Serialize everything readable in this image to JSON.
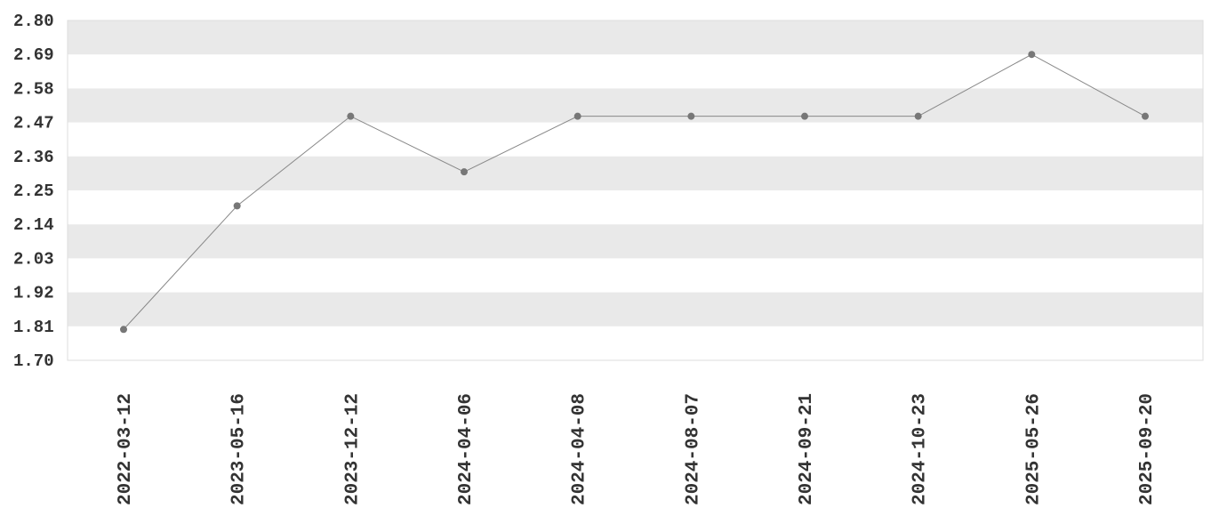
{
  "chart_data": {
    "type": "line",
    "title": "",
    "xlabel": "",
    "ylabel": "",
    "categories": [
      "2022-03-12",
      "2023-05-16",
      "2023-12-12",
      "2024-04-06",
      "2024-04-08",
      "2024-08-07",
      "2024-09-21",
      "2024-10-23",
      "2025-05-26",
      "2025-09-20"
    ],
    "series": [
      {
        "values": [
          1.8,
          2.2,
          2.49,
          2.31,
          2.49,
          2.49,
          2.49,
          2.49,
          2.69,
          2.49
        ]
      }
    ],
    "ylim": [
      1.7,
      2.8
    ],
    "yticks": [
      "1.70",
      "1.81",
      "1.92",
      "2.03",
      "2.14",
      "2.25",
      "2.36",
      "2.47",
      "2.58",
      "2.69",
      "2.80"
    ],
    "grid": "alternating horizontal bands",
    "legend": "none",
    "colors": {
      "line": "#888888",
      "marker": "#777777",
      "band": "#e9e9e9",
      "frame": "#dddddd",
      "text": "#333333"
    }
  }
}
